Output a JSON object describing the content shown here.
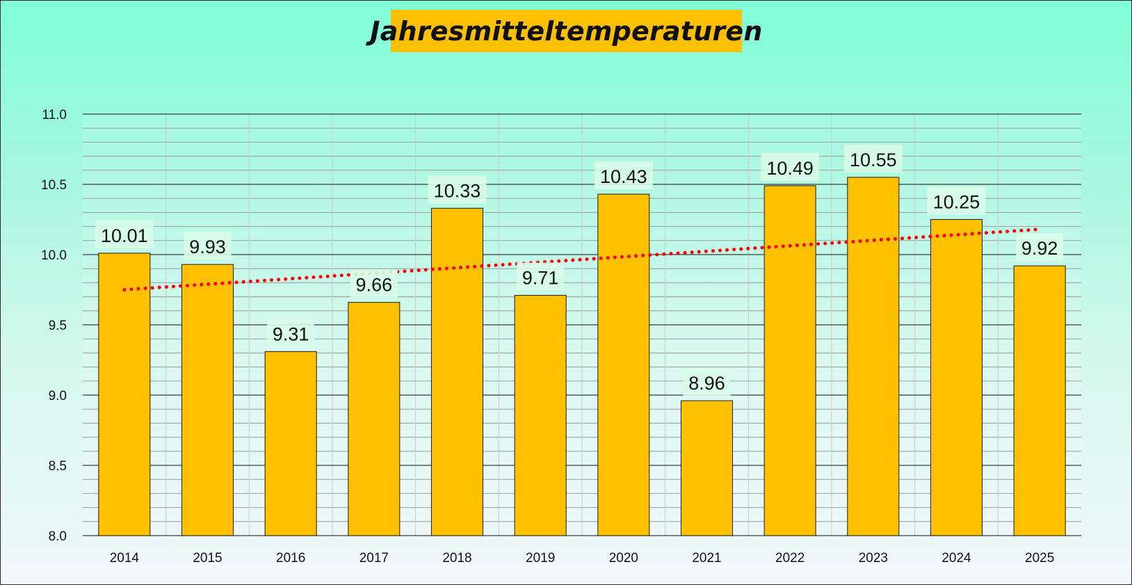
{
  "chart_data": {
    "type": "bar",
    "title": "Jahresmitteltemperaturen",
    "xlabel": "",
    "ylabel": "",
    "categories": [
      "2014",
      "2015",
      "2016",
      "2017",
      "2018",
      "2019",
      "2020",
      "2021",
      "2022",
      "2023",
      "2024",
      "2025"
    ],
    "series": [
      {
        "name": "Jahresmitteltemperatur",
        "values": [
          10.01,
          9.93,
          9.31,
          9.66,
          10.33,
          9.71,
          10.43,
          8.96,
          10.49,
          10.55,
          10.25,
          9.92
        ],
        "labels": [
          "10.01",
          "9.93",
          "9.31",
          "9.66",
          "10.33",
          "9.71",
          "10.43",
          "8.96",
          "10.49",
          "10.55",
          "10.25",
          "9.92"
        ]
      }
    ],
    "trendline": {
      "type": "linear",
      "style": "dotted",
      "start": 9.75,
      "end": 10.18
    },
    "ylim": [
      8.0,
      11.0
    ],
    "yticks": [
      8.0,
      8.5,
      9.0,
      9.5,
      10.0,
      10.5,
      11.0
    ],
    "ytick_labels": [
      "8.0",
      "8.5",
      "9.0",
      "9.5",
      "10.0",
      "10.5",
      "11.0"
    ],
    "minor_grid_step": 0.1,
    "grid": true,
    "legend": "none",
    "colors": {
      "bar": "#ffc000",
      "bar_border": "#1a1a1a",
      "trend": "#ff0000",
      "major_grid": "#3a3a3a",
      "minor_grid": "#9a9a9a",
      "vertical_grid": "#c8c8c8",
      "label_background": "#d9fbe9"
    }
  }
}
